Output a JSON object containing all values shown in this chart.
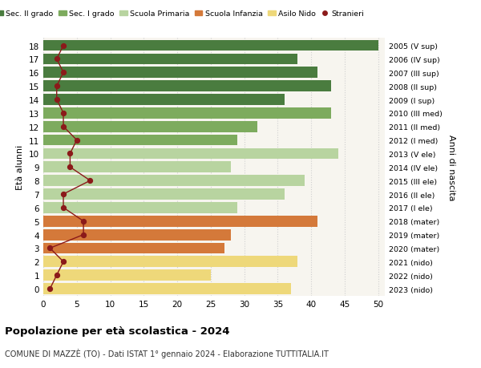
{
  "ages": [
    18,
    17,
    16,
    15,
    14,
    13,
    12,
    11,
    10,
    9,
    8,
    7,
    6,
    5,
    4,
    3,
    2,
    1,
    0
  ],
  "years": [
    "2005 (V sup)",
    "2006 (IV sup)",
    "2007 (III sup)",
    "2008 (II sup)",
    "2009 (I sup)",
    "2010 (III med)",
    "2011 (II med)",
    "2012 (I med)",
    "2013 (V ele)",
    "2014 (IV ele)",
    "2015 (III ele)",
    "2016 (II ele)",
    "2017 (I ele)",
    "2018 (mater)",
    "2019 (mater)",
    "2020 (mater)",
    "2021 (nido)",
    "2022 (nido)",
    "2023 (nido)"
  ],
  "bar_values": [
    50,
    38,
    41,
    43,
    36,
    43,
    32,
    29,
    44,
    28,
    39,
    36,
    29,
    41,
    28,
    27,
    38,
    25,
    37
  ],
  "bar_colors": [
    "#4a7c3f",
    "#4a7c3f",
    "#4a7c3f",
    "#4a7c3f",
    "#4a7c3f",
    "#7dab5e",
    "#7dab5e",
    "#7dab5e",
    "#b8d4a0",
    "#b8d4a0",
    "#b8d4a0",
    "#b8d4a0",
    "#b8d4a0",
    "#d4793a",
    "#d4793a",
    "#d4793a",
    "#eed87a",
    "#eed87a",
    "#eed87a"
  ],
  "stranieri_values": [
    3,
    2,
    3,
    2,
    2,
    3,
    3,
    5,
    4,
    4,
    7,
    3,
    3,
    6,
    6,
    1,
    3,
    2,
    1
  ],
  "legend_labels": [
    "Sec. II grado",
    "Sec. I grado",
    "Scuola Primaria",
    "Scuola Infanzia",
    "Asilo Nido",
    "Stranieri"
  ],
  "legend_colors": [
    "#4a7c3f",
    "#7dab5e",
    "#b8d4a0",
    "#d4793a",
    "#eed87a",
    "#8b1a1a"
  ],
  "title": "Popolazione per età scolastica - 2024",
  "subtitle": "COMUNE DI MAZZÈ (TO) - Dati ISTAT 1° gennaio 2024 - Elaborazione TUTTITALIA.IT",
  "ylabel": "Età alunni",
  "right_ylabel": "Anni di nascita",
  "xlabel_ticks": [
    0,
    5,
    10,
    15,
    20,
    25,
    30,
    35,
    40,
    45,
    50
  ],
  "xlim": [
    0,
    51
  ],
  "ylim_low": -0.55,
  "ylim_high": 18.55,
  "background_color": "#ffffff",
  "plot_bg_color": "#f7f5ef",
  "grid_color": "#d0d0d0"
}
